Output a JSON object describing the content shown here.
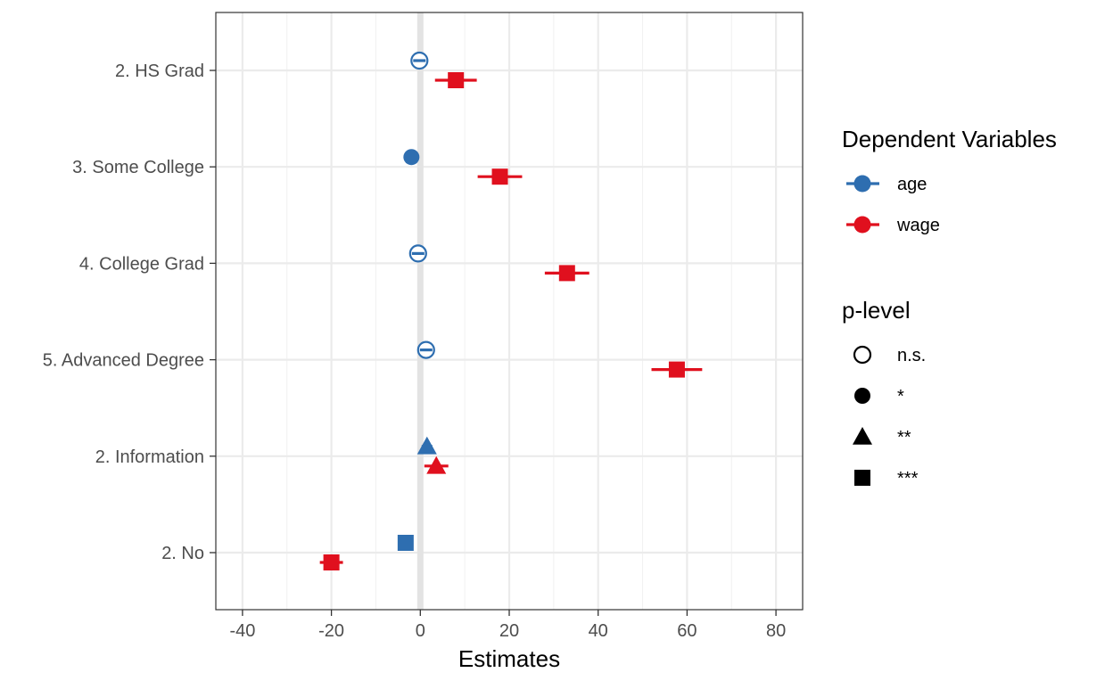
{
  "chart_data": {
    "type": "scatter",
    "subtype": "coefficient-plot",
    "xlabel": "Estimates",
    "ylabel": "",
    "xlim": [
      -46,
      86
    ],
    "x_ticks": [
      -40,
      -20,
      0,
      20,
      40,
      60,
      80
    ],
    "x_tick_labels": [
      "-40",
      "-20",
      "0",
      "20",
      "40",
      "60",
      "80"
    ],
    "categories": [
      "2. HS Grad",
      "3. Some College",
      "4. College Grad",
      "5. Advanced Degree",
      "2. Information",
      "2. No"
    ],
    "zero_line": 0,
    "grid": true,
    "legend_position": "right",
    "series": [
      {
        "name": "age",
        "color": "#2E6EB0",
        "points": [
          {
            "category": "2. HS Grad",
            "estimate": -0.2,
            "ci": [
              -1.6,
              1.2
            ],
            "p_level": "n.s."
          },
          {
            "category": "3. Some College",
            "estimate": -2.0,
            "ci": [
              -3.0,
              -1.0
            ],
            "p_level": "*"
          },
          {
            "category": "4. College Grad",
            "estimate": -0.5,
            "ci": [
              -1.9,
              0.9
            ],
            "p_level": "n.s."
          },
          {
            "category": "5. Advanced Degree",
            "estimate": 1.3,
            "ci": [
              -0.2,
              2.8
            ],
            "p_level": "n.s."
          },
          {
            "category": "2. Information",
            "estimate": 1.5,
            "ci": [
              0.3,
              2.7
            ],
            "p_level": "**"
          },
          {
            "category": "2. No",
            "estimate": -3.3,
            "ci": [
              -4.3,
              -2.3
            ],
            "p_level": "***"
          }
        ]
      },
      {
        "name": "wage",
        "color": "#E0101E",
        "points": [
          {
            "category": "2. HS Grad",
            "estimate": 8.0,
            "ci": [
              3.3,
              12.7
            ],
            "p_level": "***"
          },
          {
            "category": "3. Some College",
            "estimate": 17.9,
            "ci": [
              12.9,
              22.9
            ],
            "p_level": "***"
          },
          {
            "category": "4. College Grad",
            "estimate": 33.0,
            "ci": [
              28.0,
              38.0
            ],
            "p_level": "***"
          },
          {
            "category": "5. Advanced Degree",
            "estimate": 57.7,
            "ci": [
              52.0,
              63.4
            ],
            "p_level": "***"
          },
          {
            "category": "2. Information",
            "estimate": 3.6,
            "ci": [
              0.9,
              6.3
            ],
            "p_level": "**"
          },
          {
            "category": "2. No",
            "estimate": -20.0,
            "ci": [
              -22.6,
              -17.4
            ],
            "p_level": "***"
          }
        ]
      }
    ],
    "legend": {
      "color_title": "Dependent Variables",
      "color_items": [
        {
          "label": "age",
          "color": "#2E6EB0"
        },
        {
          "label": "wage",
          "color": "#E0101E"
        }
      ],
      "shape_title": "p-level",
      "shape_items": [
        {
          "label": "n.s.",
          "shape": "open-circle"
        },
        {
          "label": "*",
          "shape": "filled-circle"
        },
        {
          "label": "**",
          "shape": "triangle"
        },
        {
          "label": "***",
          "shape": "square"
        }
      ]
    }
  }
}
